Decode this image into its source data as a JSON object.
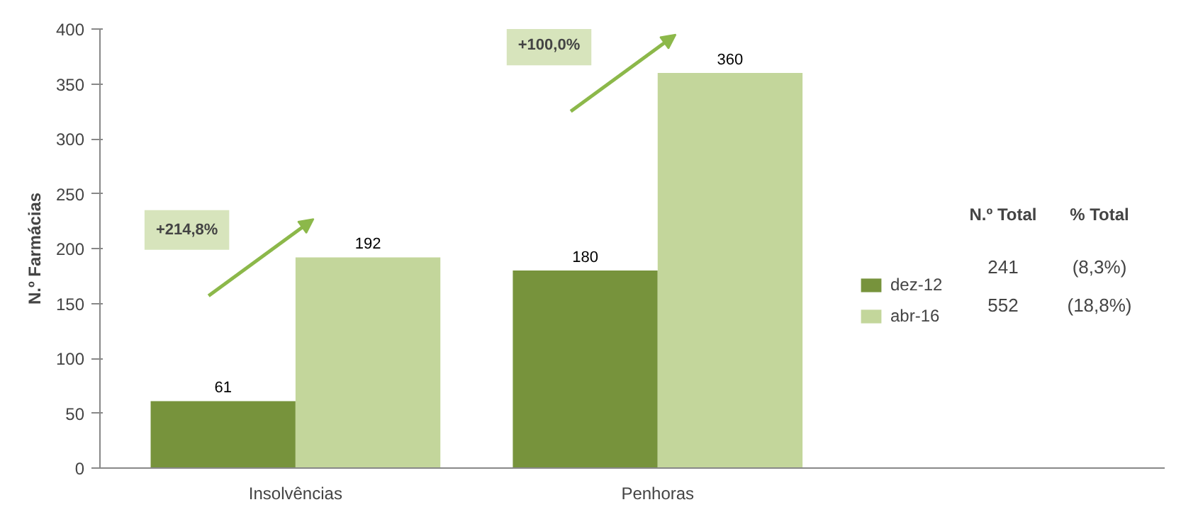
{
  "chart_data": {
    "type": "bar",
    "ylabel": "N.º Farmácias",
    "categories": [
      "Insolvências",
      "Penhoras"
    ],
    "series": [
      {
        "name": "dez-12",
        "color": "#77933c",
        "values": [
          61,
          180
        ]
      },
      {
        "name": "abr-16",
        "color": "#c3d69b",
        "values": [
          192,
          360
        ]
      }
    ],
    "ylim": [
      0,
      400
    ],
    "yticks": [
      0,
      50,
      100,
      150,
      200,
      250,
      300,
      350,
      400
    ],
    "grid": false,
    "legend": "right",
    "data_labels": true,
    "annotations": [
      "+214,8%",
      "+100,0%",
      "N.º Total",
      "% Total",
      "241",
      "(8,3%)",
      "552",
      "(18,8%)"
    ]
  }
}
